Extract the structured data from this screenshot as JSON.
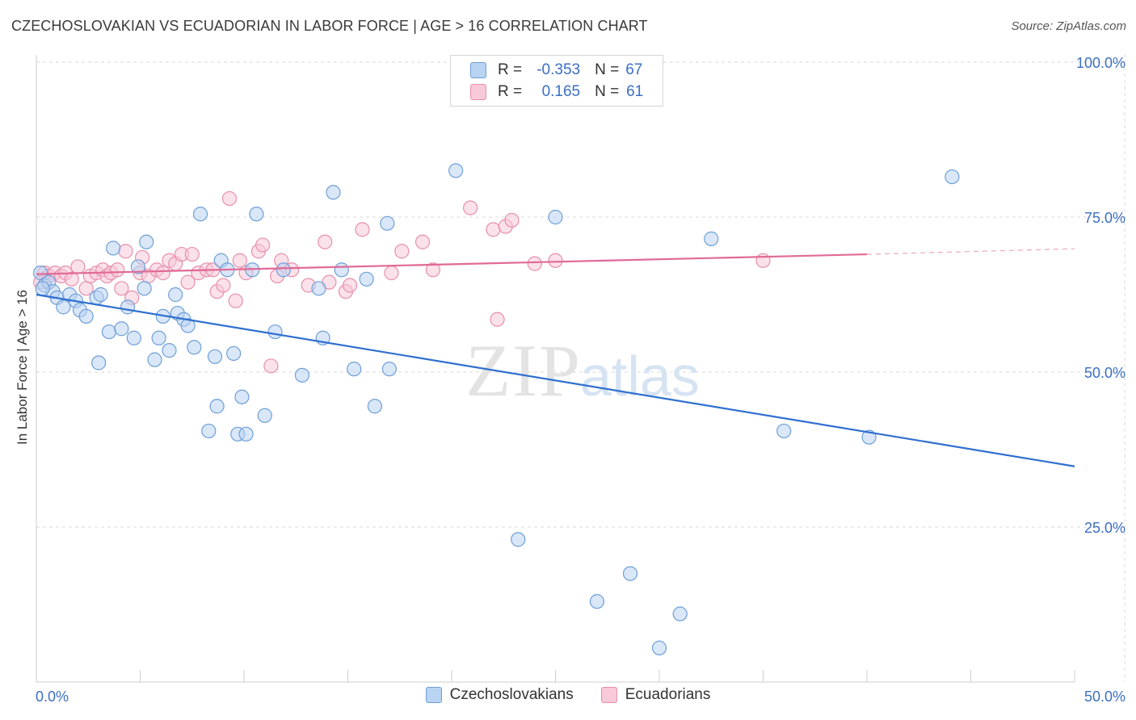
{
  "title": "CZECHOSLOVAKIAN VS ECUADORIAN IN LABOR FORCE | AGE > 16 CORRELATION CHART",
  "source": "Source: ZipAtlas.com",
  "watermark": {
    "zip": "ZIP",
    "atlas": "atlas"
  },
  "legend": {
    "r_label": "R =",
    "n_label": "N =",
    "rows": [
      {
        "r": "-0.353",
        "n": "67"
      },
      {
        "r": "0.165",
        "n": "61"
      }
    ]
  },
  "colors": {
    "blue_fill": "#b9d3f2",
    "blue_stroke": "#6f9fd8",
    "blue_line": "#2f6fd0",
    "pink_fill": "#f8c9d8",
    "pink_stroke": "#e78fac",
    "pink_line": "#e06a95",
    "tick_label": "#3b6fc4",
    "grid": "#d8d8d8"
  },
  "chart_data": {
    "type": "scatter",
    "title": "CZECHOSLOVAKIAN VS ECUADORIAN IN LABOR FORCE | AGE > 16 CORRELATION CHART",
    "xlabel": "",
    "ylabel": "In Labor Force | Age > 16",
    "xlim": [
      0,
      50
    ],
    "ylim": [
      0,
      100
    ],
    "x_tick_labels": [
      "0.0%",
      "50.0%"
    ],
    "y_ticks": [
      25,
      50,
      75,
      100
    ],
    "y_tick_labels": [
      "25.0%",
      "50.0%",
      "75.0%",
      "100.0%"
    ],
    "grid": "horizontal dashed",
    "legend_position": "top-center",
    "series": [
      {
        "name": "Czechoslovakians",
        "color": "#b9d3f2",
        "trend": {
          "x": [
            0,
            50
          ],
          "y": [
            62.5,
            34.8
          ]
        },
        "points": [
          [
            0.2,
            66.0
          ],
          [
            0.4,
            64.0
          ],
          [
            0.6,
            64.5
          ],
          [
            0.8,
            63.0
          ],
          [
            1.0,
            62.0
          ],
          [
            1.3,
            60.5
          ],
          [
            1.6,
            62.5
          ],
          [
            1.9,
            61.5
          ],
          [
            2.1,
            60.0
          ],
          [
            2.4,
            59.0
          ],
          [
            2.9,
            62.0
          ],
          [
            3.1,
            62.5
          ],
          [
            3.0,
            51.5
          ],
          [
            3.5,
            56.5
          ],
          [
            3.7,
            70.0
          ],
          [
            4.1,
            57.0
          ],
          [
            4.4,
            60.5
          ],
          [
            4.7,
            55.5
          ],
          [
            4.9,
            67.0
          ],
          [
            5.2,
            63.5
          ],
          [
            5.3,
            71.0
          ],
          [
            5.7,
            52.0
          ],
          [
            5.9,
            55.5
          ],
          [
            6.1,
            59.0
          ],
          [
            6.4,
            53.5
          ],
          [
            6.8,
            59.5
          ],
          [
            6.7,
            62.5
          ],
          [
            7.1,
            58.5
          ],
          [
            7.3,
            57.5
          ],
          [
            7.6,
            54.0
          ],
          [
            7.9,
            75.5
          ],
          [
            8.3,
            40.5
          ],
          [
            8.6,
            52.5
          ],
          [
            8.7,
            44.5
          ],
          [
            8.9,
            68.0
          ],
          [
            9.2,
            66.5
          ],
          [
            9.5,
            53.0
          ],
          [
            9.7,
            40.0
          ],
          [
            9.9,
            46.0
          ],
          [
            10.1,
            40.0
          ],
          [
            10.4,
            66.5
          ],
          [
            10.6,
            75.5
          ],
          [
            11.0,
            43.0
          ],
          [
            11.5,
            56.5
          ],
          [
            11.9,
            66.5
          ],
          [
            12.8,
            49.5
          ],
          [
            13.6,
            63.5
          ],
          [
            13.8,
            55.5
          ],
          [
            14.3,
            79.0
          ],
          [
            14.7,
            66.5
          ],
          [
            15.3,
            50.5
          ],
          [
            15.9,
            65.0
          ],
          [
            16.3,
            44.5
          ],
          [
            16.9,
            74.0
          ],
          [
            17.0,
            50.5
          ],
          [
            20.2,
            82.5
          ],
          [
            23.2,
            23.0
          ],
          [
            25.0,
            75.0
          ],
          [
            27.0,
            13.0
          ],
          [
            28.6,
            17.5
          ],
          [
            30.0,
            5.5
          ],
          [
            31.0,
            11.0
          ],
          [
            32.5,
            71.5
          ],
          [
            36.0,
            40.5
          ],
          [
            40.1,
            39.5
          ],
          [
            44.1,
            81.5
          ],
          [
            0.3,
            63.5
          ]
        ]
      },
      {
        "name": "Ecuadorians",
        "color": "#f8c9d8",
        "trend": {
          "x": [
            0,
            40
          ],
          "y": [
            65.8,
            69.0
          ]
        },
        "trend_dashed": {
          "x": [
            40,
            50
          ],
          "y": [
            69.0,
            69.9
          ]
        },
        "points": [
          [
            0.2,
            64.5
          ],
          [
            0.4,
            66.0
          ],
          [
            0.6,
            65.5
          ],
          [
            0.9,
            66.0
          ],
          [
            1.2,
            65.5
          ],
          [
            1.4,
            66.0
          ],
          [
            1.7,
            65.0
          ],
          [
            2.0,
            67.0
          ],
          [
            2.4,
            63.5
          ],
          [
            2.6,
            65.5
          ],
          [
            2.9,
            66.0
          ],
          [
            3.2,
            66.5
          ],
          [
            3.4,
            65.5
          ],
          [
            3.6,
            66.0
          ],
          [
            3.9,
            66.5
          ],
          [
            4.1,
            63.5
          ],
          [
            4.3,
            69.5
          ],
          [
            4.6,
            62.0
          ],
          [
            5.0,
            66.0
          ],
          [
            5.1,
            68.5
          ],
          [
            5.4,
            65.5
          ],
          [
            5.8,
            66.5
          ],
          [
            6.1,
            66.0
          ],
          [
            6.4,
            68.0
          ],
          [
            6.7,
            67.5
          ],
          [
            7.0,
            69.0
          ],
          [
            7.3,
            64.5
          ],
          [
            7.5,
            69.0
          ],
          [
            7.8,
            66.0
          ],
          [
            8.2,
            66.5
          ],
          [
            8.5,
            66.5
          ],
          [
            8.7,
            63.0
          ],
          [
            9.0,
            64.0
          ],
          [
            9.3,
            78.0
          ],
          [
            9.6,
            61.5
          ],
          [
            9.8,
            68.0
          ],
          [
            10.1,
            66.0
          ],
          [
            10.7,
            69.5
          ],
          [
            10.9,
            70.5
          ],
          [
            11.3,
            51.0
          ],
          [
            11.6,
            65.5
          ],
          [
            11.8,
            68.0
          ],
          [
            12.3,
            66.5
          ],
          [
            13.1,
            64.0
          ],
          [
            13.9,
            71.0
          ],
          [
            14.1,
            64.5
          ],
          [
            14.9,
            63.0
          ],
          [
            15.1,
            64.0
          ],
          [
            15.7,
            73.0
          ],
          [
            17.1,
            66.0
          ],
          [
            17.6,
            69.5
          ],
          [
            18.6,
            71.0
          ],
          [
            19.1,
            66.5
          ],
          [
            20.9,
            76.5
          ],
          [
            22.0,
            73.0
          ],
          [
            22.2,
            58.5
          ],
          [
            22.6,
            73.5
          ],
          [
            22.9,
            74.5
          ],
          [
            24.0,
            67.5
          ],
          [
            25.0,
            68.0
          ],
          [
            35.0,
            68.0
          ]
        ]
      }
    ]
  }
}
